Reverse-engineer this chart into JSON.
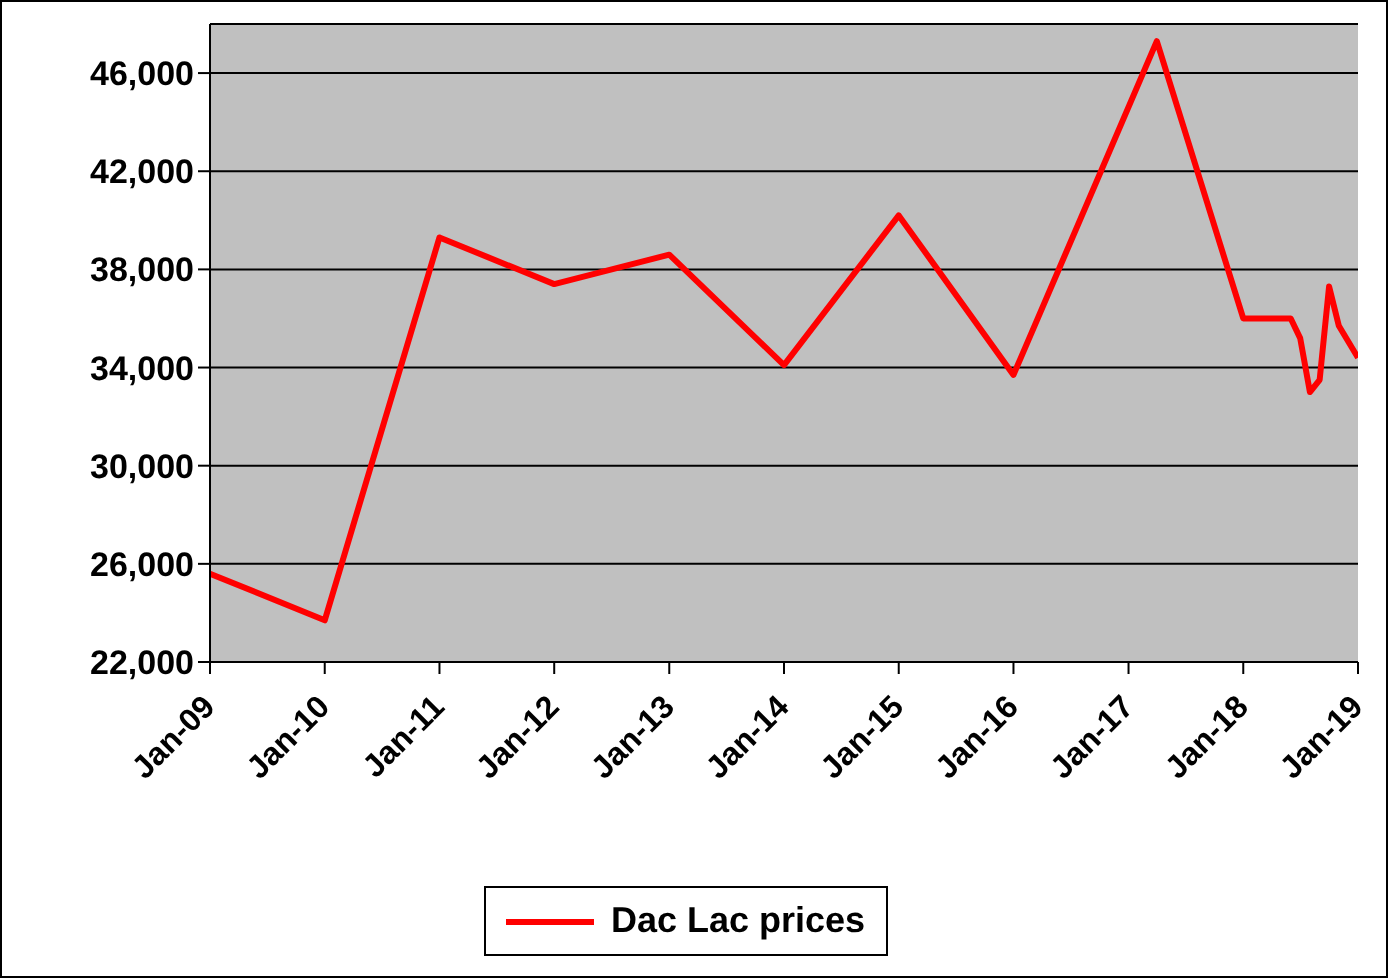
{
  "chart_data": {
    "type": "line",
    "x": [
      "2009-01",
      "2010-01",
      "2011-01",
      "2012-01",
      "2013-01",
      "2014-01",
      "2015-01",
      "2016-01",
      "2017-04",
      "2018-01",
      "2018-06",
      "2018-07",
      "2018-08",
      "2018-09",
      "2018-10",
      "2018-11",
      "2019-01"
    ],
    "series": [
      {
        "name": "Dac Lac prices",
        "color": "#ff0000",
        "values": [
          25600,
          23700,
          39300,
          37400,
          38600,
          34100,
          40200,
          33700,
          47300,
          36000,
          36000,
          35200,
          33000,
          33500,
          37300,
          35700,
          34400
        ]
      }
    ],
    "xlim": [
      "2009-01",
      "2019-01"
    ],
    "xticks": [
      {
        "value": "2009-01",
        "label": "Jan-09"
      },
      {
        "value": "2010-01",
        "label": "Jan-10"
      },
      {
        "value": "2011-01",
        "label": "Jan-11"
      },
      {
        "value": "2012-01",
        "label": "Jan-12"
      },
      {
        "value": "2013-01",
        "label": "Jan-13"
      },
      {
        "value": "2014-01",
        "label": "Jan-14"
      },
      {
        "value": "2015-01",
        "label": "Jan-15"
      },
      {
        "value": "2016-01",
        "label": "Jan-16"
      },
      {
        "value": "2017-01",
        "label": "Jan-17"
      },
      {
        "value": "2018-01",
        "label": "Jan-18"
      },
      {
        "value": "2019-01",
        "label": "Jan-19"
      }
    ],
    "ylim": [
      22000,
      48000
    ],
    "yticks": [
      {
        "value": 22000,
        "label": "22,000"
      },
      {
        "value": 26000,
        "label": "26,000"
      },
      {
        "value": 30000,
        "label": "30,000"
      },
      {
        "value": 34000,
        "label": "34,000"
      },
      {
        "value": 38000,
        "label": "38,000"
      },
      {
        "value": 42000,
        "label": "42,000"
      },
      {
        "value": 46000,
        "label": "46,000"
      }
    ],
    "grid": "y",
    "legend": "bottom",
    "marker": "none",
    "line_style": "solid"
  }
}
